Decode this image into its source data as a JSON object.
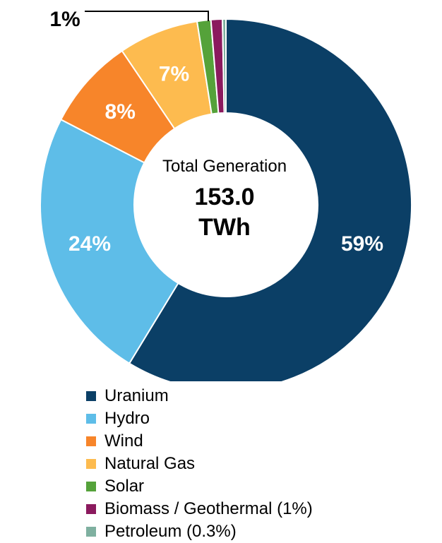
{
  "chart_data": {
    "type": "pie",
    "donut": true,
    "center_text": {
      "subtitle": "Total Generation",
      "value": "153.0",
      "unit": "TWh"
    },
    "series": [
      {
        "name": "Uranium",
        "value": 59,
        "label": "59%",
        "color": "#0b3f66"
      },
      {
        "name": "Hydro",
        "value": 24,
        "label": "24%",
        "color": "#5ebde8"
      },
      {
        "name": "Wind",
        "value": 8,
        "label": "8%",
        "color": "#f7852a"
      },
      {
        "name": "Natural Gas",
        "value": 7,
        "label": "7%",
        "color": "#fdbb4f"
      },
      {
        "name": "Solar",
        "value": 1.2,
        "label": "1%",
        "color": "#55a23a"
      },
      {
        "name": "Biomass / Geothermal (1%)",
        "value": 1,
        "label": "",
        "color": "#8b1a5e"
      },
      {
        "name": "Petroleum (0.3%)",
        "value": 0.3,
        "label": "",
        "color": "#7fb0a0"
      }
    ],
    "legend_position": "bottom"
  }
}
